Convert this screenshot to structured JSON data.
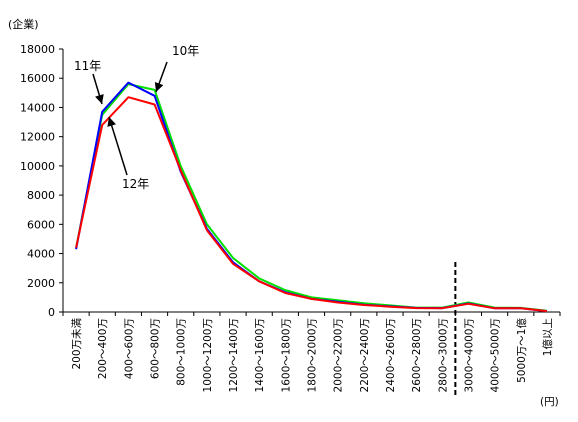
{
  "chart_data": {
    "type": "line",
    "ylabel": "(企業)",
    "xunit": "(円)",
    "ylim": [
      0,
      18000
    ],
    "yticks": [
      0,
      2000,
      4000,
      6000,
      8000,
      10000,
      12000,
      14000,
      16000,
      18000
    ],
    "categories": [
      "200万未満",
      "200～400万",
      "400～600万",
      "600～800万",
      "800～1000万",
      "1000～1200万",
      "1200～1400万",
      "1400～1600万",
      "1600～1800万",
      "1800～2000万",
      "2000～2200万",
      "2200～2400万",
      "2400～2600万",
      "2600～2800万",
      "2800～3000万",
      "3000～4000万",
      "4000～5000万",
      "5000万～1億",
      "1億以上"
    ],
    "break_after_index": 14,
    "series": [
      {
        "name": "10年",
        "color": "#00e000",
        "values": [
          4400,
          13500,
          15600,
          15200,
          10000,
          6000,
          3700,
          2300,
          1500,
          1000,
          800,
          600,
          450,
          300,
          300,
          650,
          300,
          280,
          80
        ]
      },
      {
        "name": "11年",
        "color": "#0000ff",
        "values": [
          4300,
          13700,
          15700,
          14800,
          9600,
          5700,
          3400,
          2100,
          1350,
          900,
          700,
          500,
          380,
          280,
          270,
          580,
          250,
          250,
          60
        ]
      },
      {
        "name": "12年",
        "color": "#ff0000",
        "values": [
          4400,
          12800,
          14700,
          14200,
          9700,
          5600,
          3300,
          2100,
          1300,
          900,
          650,
          480,
          360,
          270,
          260,
          560,
          250,
          250,
          60
        ]
      }
    ],
    "annotations": [
      {
        "text": "10年",
        "series": "10年"
      },
      {
        "text": "11年",
        "series": "11年"
      },
      {
        "text": "12年",
        "series": "12年"
      }
    ]
  }
}
